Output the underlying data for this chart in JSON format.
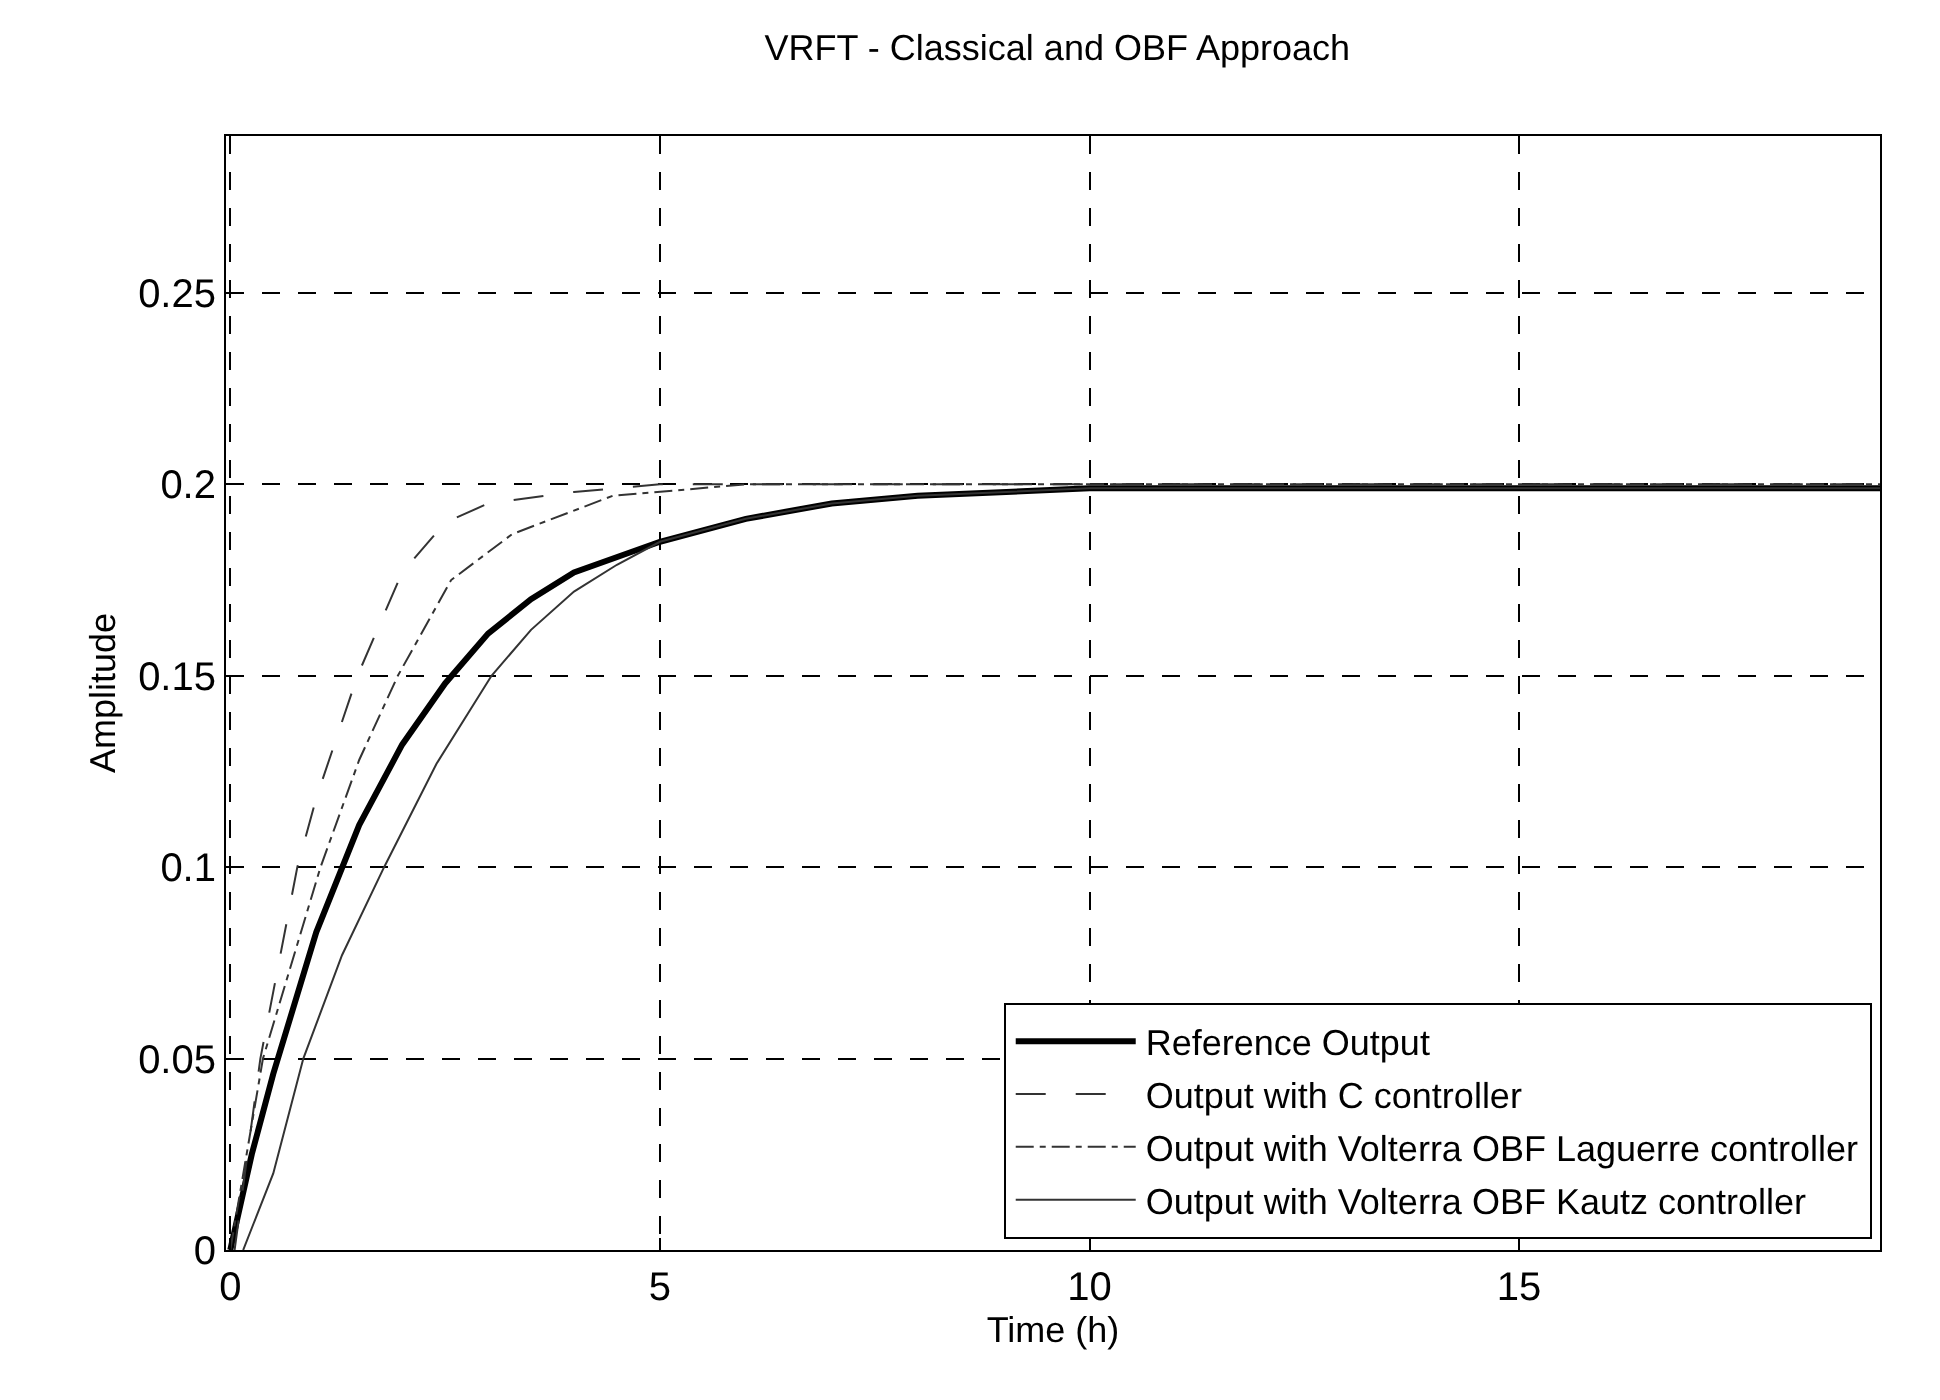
{
  "chart_data": {
    "type": "line",
    "title": "VRFT - Classical and OBF Approach",
    "xlabel": "Time (h)",
    "ylabel": "Amplitude",
    "xlim": [
      -0.05,
      19.2
    ],
    "xticks": [
      0,
      5,
      10,
      15
    ],
    "ylim": [
      0,
      0.291
    ],
    "yticks": [
      0,
      0.05,
      0.1,
      0.15,
      0.2,
      0.25
    ],
    "grid": true,
    "legend": "bottom right",
    "marker": "none",
    "series": [
      {
        "name": "Reference Output",
        "color": "#000000",
        "line_style": "solid",
        "x": [
          0,
          0.25,
          0.5,
          1,
          1.5,
          2,
          2.5,
          3,
          3.5,
          4,
          5,
          6,
          7,
          8,
          10,
          19.2
        ],
        "values": [
          0,
          0.025,
          0.046,
          0.083,
          0.111,
          0.132,
          0.148,
          0.161,
          0.17,
          0.177,
          0.185,
          0.191,
          0.195,
          0.197,
          0.199,
          0.199
        ]
      },
      {
        "name": "Output with C controller",
        "color": "#333333",
        "line_style": "dashed",
        "x": [
          0.05,
          0.35,
          0.78,
          1,
          1.48,
          2,
          2.5,
          3,
          4,
          5,
          19.2
        ],
        "values": [
          0,
          0.05,
          0.1,
          0.118,
          0.15,
          0.177,
          0.19,
          0.195,
          0.198,
          0.2,
          0.2
        ]
      },
      {
        "name": "Output with Volterra OBF Laguerre controller",
        "color": "#333333",
        "line_style": "dashdot",
        "x": [
          0,
          0.38,
          1.05,
          1.5,
          1.95,
          2.57,
          3.28,
          4.45,
          6,
          19.2
        ],
        "values": [
          0,
          0.05,
          0.1,
          0.128,
          0.15,
          0.175,
          0.187,
          0.197,
          0.2,
          0.2
        ]
      },
      {
        "name": "Output with Volterra OBF Kautz controller",
        "color": "#333333",
        "line_style": "solid",
        "x": [
          0.15,
          0.5,
          0.85,
          1.3,
          1.79,
          2.4,
          3.04,
          3.5,
          4,
          4.5,
          5,
          6,
          7,
          8,
          10,
          19.2
        ],
        "values": [
          0,
          0.02,
          0.05,
          0.077,
          0.1,
          0.127,
          0.15,
          0.162,
          0.172,
          0.179,
          0.185,
          0.191,
          0.195,
          0.197,
          0.199,
          0.199
        ]
      }
    ]
  }
}
